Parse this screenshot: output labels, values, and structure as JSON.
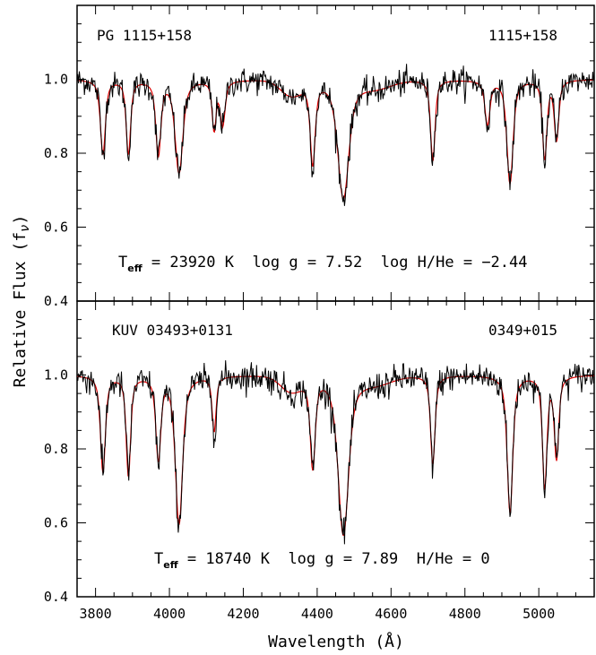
{
  "chart_data": [
    {
      "type": "line",
      "star_name": "PG 1115+158",
      "short_name": "1115+158",
      "params": {
        "teff_prefix": "T",
        "teff_sub": "eff",
        "teff_text": " = 23920 K  log g = 7.52  log H/He = −2.44"
      },
      "xlim": [
        3750,
        5150
      ],
      "ylim": [
        0.4,
        1.2
      ],
      "yticks": [
        "0.4",
        "0.6",
        "0.8",
        "1.0"
      ],
      "series": [
        {
          "color": "#000000",
          "role": "observed",
          "noise": 0.018
        },
        {
          "color": "#dd0000",
          "role": "model"
        }
      ],
      "lines": [
        {
          "center": 3820,
          "depth": 0.2,
          "width": 9
        },
        {
          "center": 3889,
          "depth": 0.2,
          "width": 8
        },
        {
          "center": 3970,
          "depth": 0.2,
          "width": 9
        },
        {
          "center": 4026,
          "depth": 0.25,
          "width": 14
        },
        {
          "center": 4121,
          "depth": 0.13,
          "width": 7
        },
        {
          "center": 4144,
          "depth": 0.12,
          "width": 9
        },
        {
          "center": 4388,
          "depth": 0.22,
          "width": 9
        },
        {
          "center": 4471,
          "depth": 0.32,
          "width": 20
        },
        {
          "center": 4713,
          "depth": 0.22,
          "width": 8
        },
        {
          "center": 4861,
          "depth": 0.12,
          "width": 9
        },
        {
          "center": 4922,
          "depth": 0.28,
          "width": 11
        },
        {
          "center": 5016,
          "depth": 0.21,
          "width": 8
        },
        {
          "center": 5048,
          "depth": 0.16,
          "width": 8
        }
      ]
    },
    {
      "type": "line",
      "star_name": "KUV 03493+0131",
      "short_name": "0349+015",
      "params": {
        "teff_prefix": "T",
        "teff_sub": "eff",
        "teff_text": " = 18740 K  log g = 7.89  H/He = 0"
      },
      "xlim": [
        3750,
        5150
      ],
      "ylim": [
        0.4,
        1.2
      ],
      "yticks": [
        "0.4",
        "0.6",
        "0.8",
        "1.0"
      ],
      "series": [
        {
          "color": "#000000",
          "role": "observed",
          "noise": 0.02
        },
        {
          "color": "#dd0000",
          "role": "model"
        }
      ],
      "lines": [
        {
          "center": 3820,
          "depth": 0.26,
          "width": 9
        },
        {
          "center": 3889,
          "depth": 0.27,
          "width": 8
        },
        {
          "center": 3970,
          "depth": 0.22,
          "width": 9
        },
        {
          "center": 4026,
          "depth": 0.4,
          "width": 13
        },
        {
          "center": 4121,
          "depth": 0.15,
          "width": 7
        },
        {
          "center": 4388,
          "depth": 0.24,
          "width": 9
        },
        {
          "center": 4471,
          "depth": 0.43,
          "width": 19
        },
        {
          "center": 4713,
          "depth": 0.24,
          "width": 8
        },
        {
          "center": 4922,
          "depth": 0.37,
          "width": 10
        },
        {
          "center": 5016,
          "depth": 0.3,
          "width": 8
        },
        {
          "center": 5048,
          "depth": 0.22,
          "width": 8
        }
      ]
    }
  ],
  "axes": {
    "xlabel": "Wavelength (Å)",
    "ylabel": "Relative Flux (f",
    "ylabel_sub": "ν",
    "ylabel_close": ")",
    "xticks": [
      "3800",
      "4000",
      "4200",
      "4400",
      "4600",
      "4800",
      "5000"
    ]
  }
}
